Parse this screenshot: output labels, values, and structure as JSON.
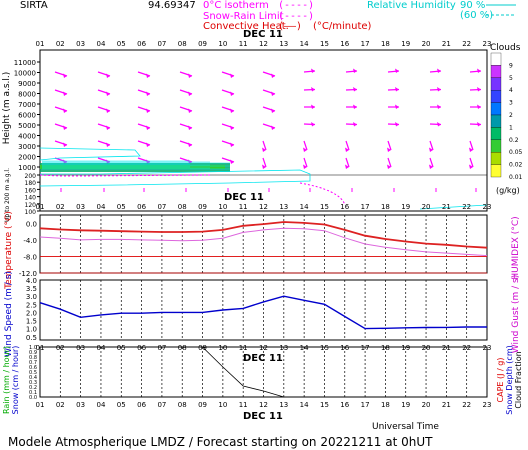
{
  "header": {
    "station": "SIRTA",
    "coords": "94.69347",
    "legend_isotherm": "0°C isotherm",
    "legend_isotherm_sym": "(----)",
    "legend_snowrain": "Snow-Rain Limit",
    "legend_snowrain_sym": "(----)",
    "legend_convective": "Convective Heat.",
    "legend_convective_sym": "(——)",
    "legend_convective_unit": "(°C/minute)",
    "legend_rh": "Relative Humidity",
    "legend_rh_90": "90 %",
    "legend_rh_60": "(60 %)",
    "date_top": "DEC 11"
  },
  "footer": {
    "title": "Modele Atmospherique LMDZ / Forecast starting on 20221211 at 0hUT",
    "time_label": "Universal Time",
    "date_bottom": "DEC 11"
  },
  "colors": {
    "magenta": "#ff00ff",
    "cyan": "#00e5ee",
    "red": "#dd0000",
    "blue": "#0000cc",
    "green": "#00aa00",
    "black": "#000000"
  },
  "chart_data": [
    {
      "id": "clouds",
      "type": "heatmap",
      "x": [
        "01",
        "02",
        "03",
        "04",
        "05",
        "06",
        "07",
        "08",
        "09",
        "10",
        "11",
        "12",
        "13",
        "14",
        "15",
        "16",
        "17",
        "18",
        "19",
        "20",
        "21",
        "22",
        "23"
      ],
      "ylabel": "Height (m a.s.l.)",
      "ylabel_low": "Up to 200 m a.g.l.",
      "yticks_upper": [
        1000,
        2000,
        3000,
        4000,
        5000,
        6000,
        7000,
        8000,
        9000,
        10000,
        11000
      ],
      "yticks_lower": [
        100,
        120,
        140,
        160,
        180,
        200
      ],
      "colorbar_title": "Clouds",
      "colorbar_unit": "(g/kg)",
      "colorbar_ticks": [
        "9",
        "5",
        "4",
        "3",
        "2",
        "1",
        "0.2",
        "0.05",
        "0.02",
        "0.01"
      ],
      "colorbar_colors": [
        "#ffffff",
        "#cc33ff",
        "#7733ff",
        "#3344ff",
        "#0077ff",
        "#0099aa",
        "#00bb66",
        "#33cc33",
        "#aadd00",
        "#ffff33"
      ]
    },
    {
      "id": "temperature",
      "type": "line",
      "x": [
        "01",
        "02",
        "03",
        "04",
        "05",
        "06",
        "07",
        "08",
        "09",
        "10",
        "11",
        "12",
        "13",
        "14",
        "15",
        "16",
        "17",
        "18",
        "19",
        "20",
        "21",
        "22",
        "23"
      ],
      "ylabel": "Temperature (°C)",
      "ylabel_right": "HUMIDEX (°C)",
      "yticks": [
        "0.0",
        "-4.0",
        "-8.0",
        "-12.0"
      ],
      "ylim": [
        -12,
        2
      ],
      "series": [
        {
          "name": "Temperature",
          "values": [
            -1.2,
            -1.5,
            -1.7,
            -1.8,
            -1.9,
            -2.0,
            -2.1,
            -2.1,
            -2.0,
            -1.6,
            -0.6,
            -0.2,
            0.3,
            0.1,
            -0.3,
            -1.6,
            -3.0,
            -3.8,
            -4.4,
            -4.9,
            -5.2,
            -5.6,
            -5.9
          ]
        },
        {
          "name": "HUMIDEX",
          "values": [
            -3.3,
            -3.6,
            -4.0,
            -3.9,
            -3.9,
            -4.0,
            -4.1,
            -4.2,
            -4.1,
            -3.6,
            -2.2,
            -1.6,
            -1.2,
            -1.3,
            -1.8,
            -3.5,
            -5.0,
            -5.8,
            -6.4,
            -6.9,
            -7.2,
            -7.5,
            -7.8
          ]
        }
      ]
    },
    {
      "id": "wind",
      "type": "line",
      "x": [
        "01",
        "02",
        "03",
        "04",
        "05",
        "06",
        "07",
        "08",
        "09",
        "10",
        "11",
        "12",
        "13",
        "14",
        "15",
        "16",
        "17",
        "18",
        "19",
        "20",
        "21",
        "22",
        "23"
      ],
      "ylabel": "Wind Speed (m / s)",
      "ylabel_right": "Wind Gust (m / s)",
      "yticks": [
        "4.0",
        "3.5",
        "3.0",
        "2.5",
        "2.0",
        "1.5",
        "1.0",
        "0.5"
      ],
      "ylim": [
        0.3,
        4.0
      ],
      "date": "DEC 11",
      "series": [
        {
          "name": "Wind Speed",
          "values": [
            2.6,
            2.2,
            1.7,
            1.85,
            1.95,
            1.95,
            2.0,
            2.0,
            2.0,
            2.15,
            2.25,
            2.65,
            3.0,
            2.75,
            2.5,
            1.75,
            1.0,
            1.02,
            1.05,
            1.07,
            1.08,
            1.1,
            1.1
          ]
        }
      ]
    },
    {
      "id": "precip",
      "type": "line",
      "x": [
        "01",
        "02",
        "03",
        "04",
        "05",
        "06",
        "07",
        "08",
        "09",
        "10",
        "11",
        "12",
        "13",
        "14",
        "15",
        "16",
        "17",
        "18",
        "19",
        "20",
        "21",
        "22",
        "23"
      ],
      "ylabel_left_1": "Rain (mm / hour)",
      "ylabel_left_2": "Snow (cm / hour)",
      "ylabel_right_1": "CAPE (J / g)",
      "ylabel_right_2": "Snow Depth (cm)",
      "ylabel_right_3": "Cloud Fraction",
      "yticks": [
        "1.0",
        "0.9",
        "0.8",
        "0.7",
        "0.6",
        "0.5",
        "0.4",
        "0.3",
        "0.2",
        "0.1",
        "0.0"
      ],
      "ylim": [
        0,
        1
      ],
      "series": [
        {
          "name": "Cloud Fraction",
          "values": [
            1,
            1,
            1,
            1,
            1,
            1,
            1,
            1,
            1,
            0.6,
            0.22,
            0.12,
            0.0,
            0,
            0,
            0,
            0,
            0,
            0,
            0,
            0,
            0,
            0
          ]
        }
      ]
    }
  ]
}
